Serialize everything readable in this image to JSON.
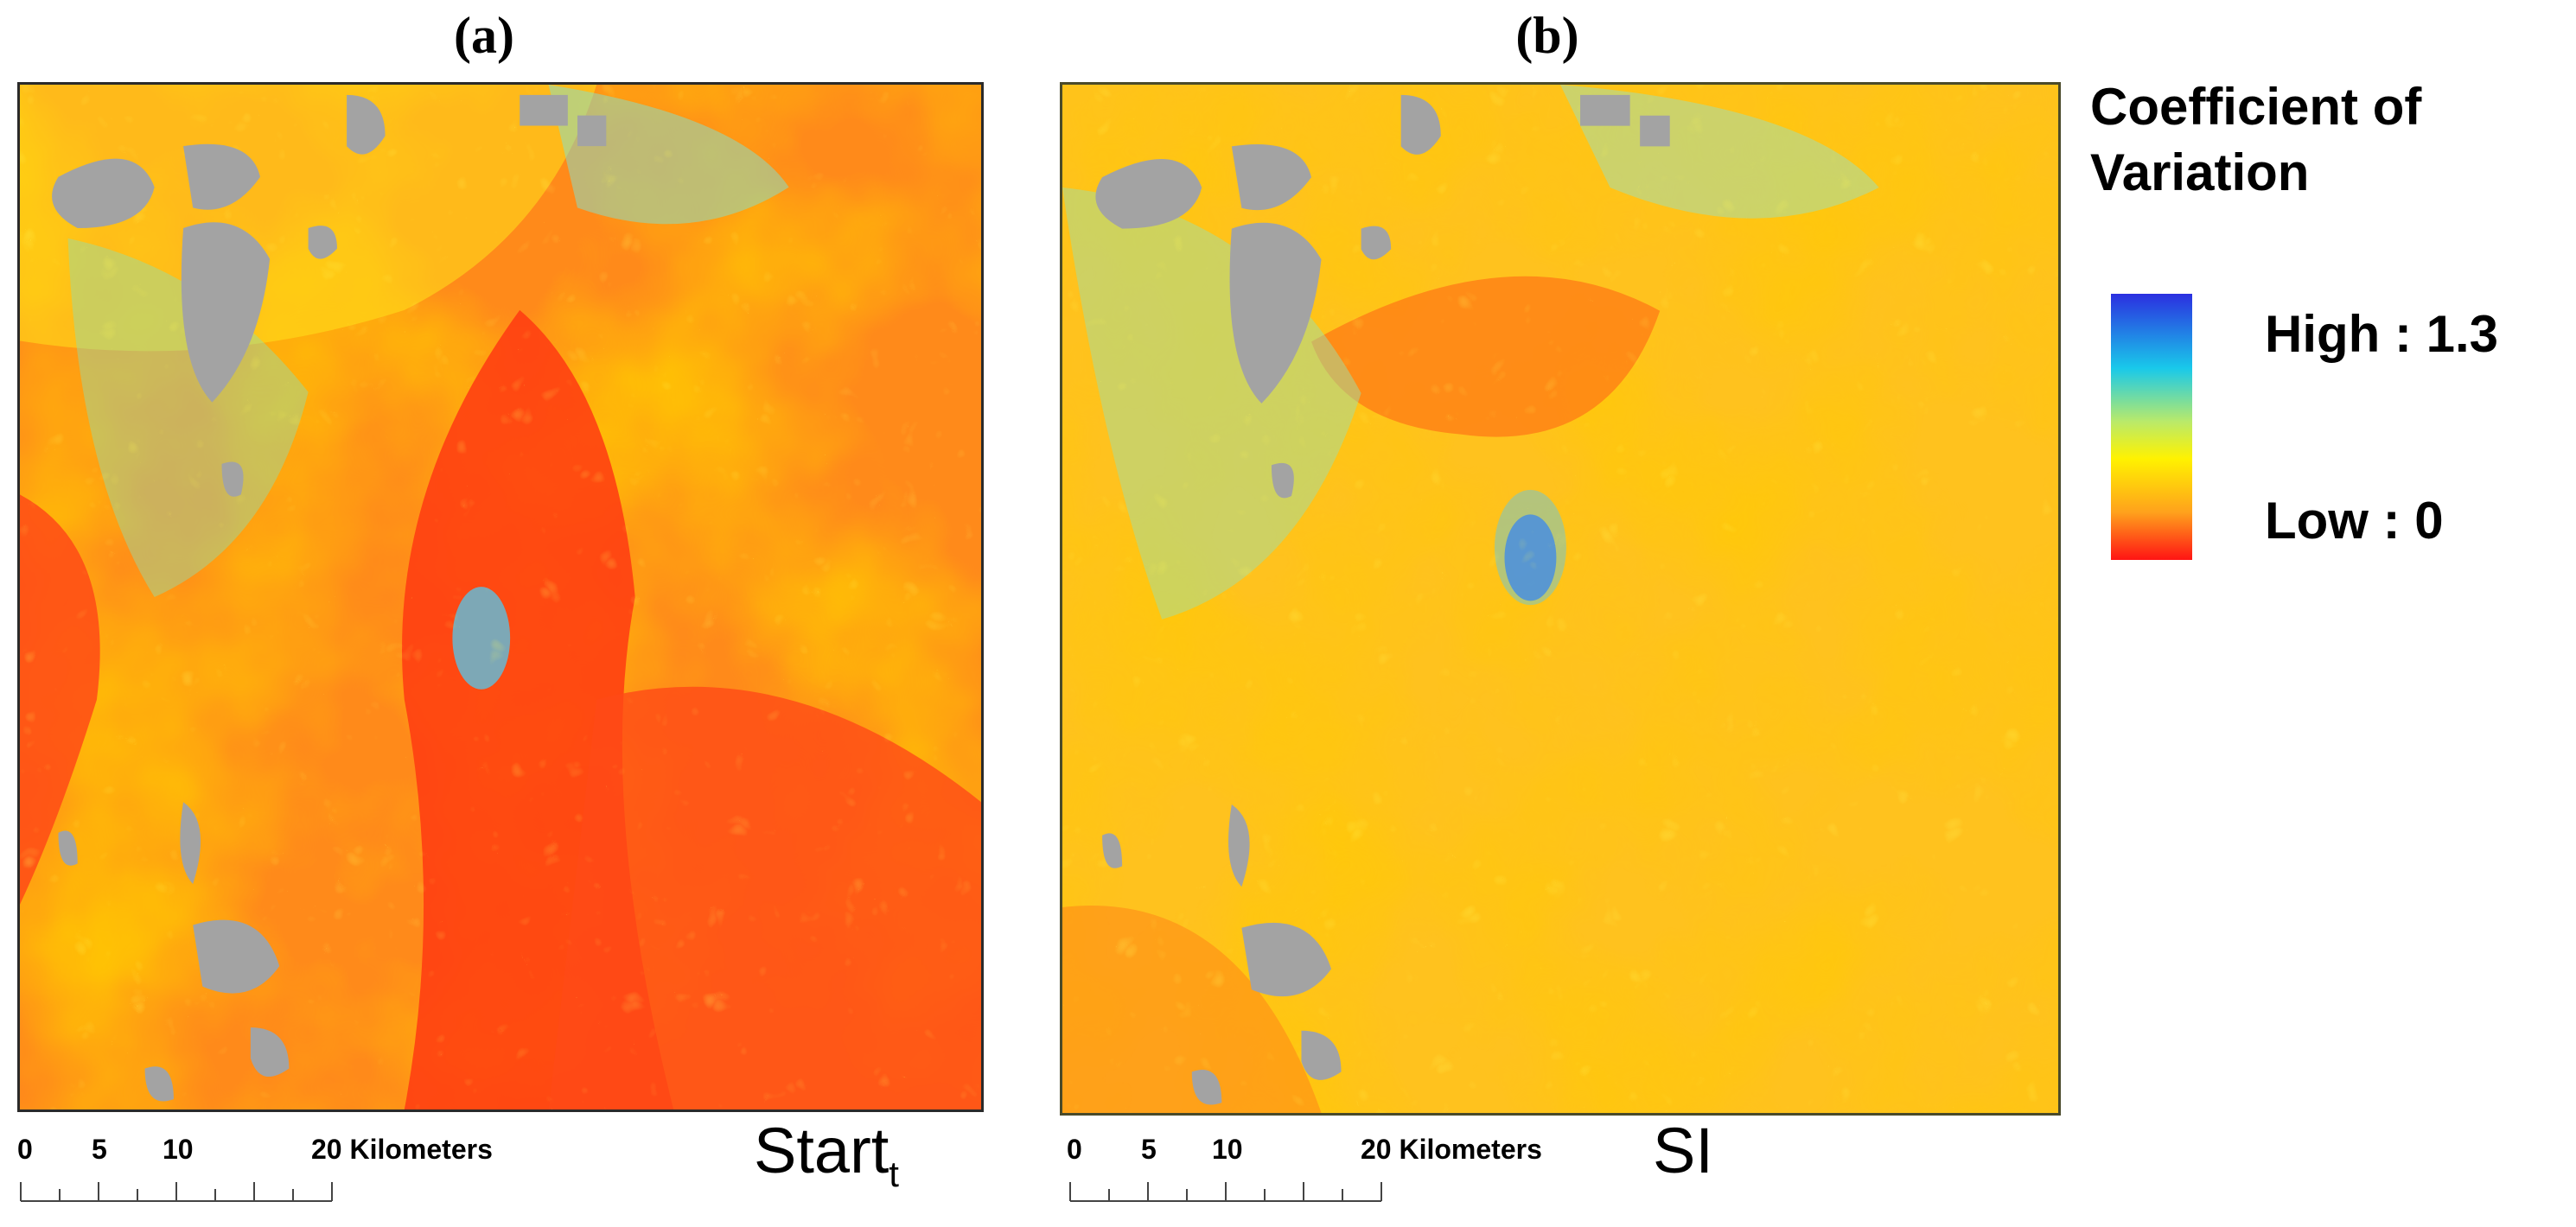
{
  "panels": [
    {
      "label": "(a)",
      "caption_main": "Start",
      "caption_sub": "t",
      "scale": {
        "ticks": [
          "0",
          "5",
          "10",
          "20 Kilometers"
        ]
      }
    },
    {
      "label": "(b)",
      "caption_main": "SI",
      "caption_sub": "",
      "scale": {
        "ticks": [
          "0",
          "5",
          "10",
          "20 Kilometers"
        ]
      }
    }
  ],
  "legend": {
    "title_line1": "Coefficient of",
    "title_line2": "Variation",
    "high": "High : 1.3",
    "low": "Low : 0",
    "colors": [
      "#2b2fe0",
      "#19c9ea",
      "#b9ea6a",
      "#fff200",
      "#ffa21c",
      "#ff1414"
    ],
    "nodata_color": "#a3a3a3"
  }
}
